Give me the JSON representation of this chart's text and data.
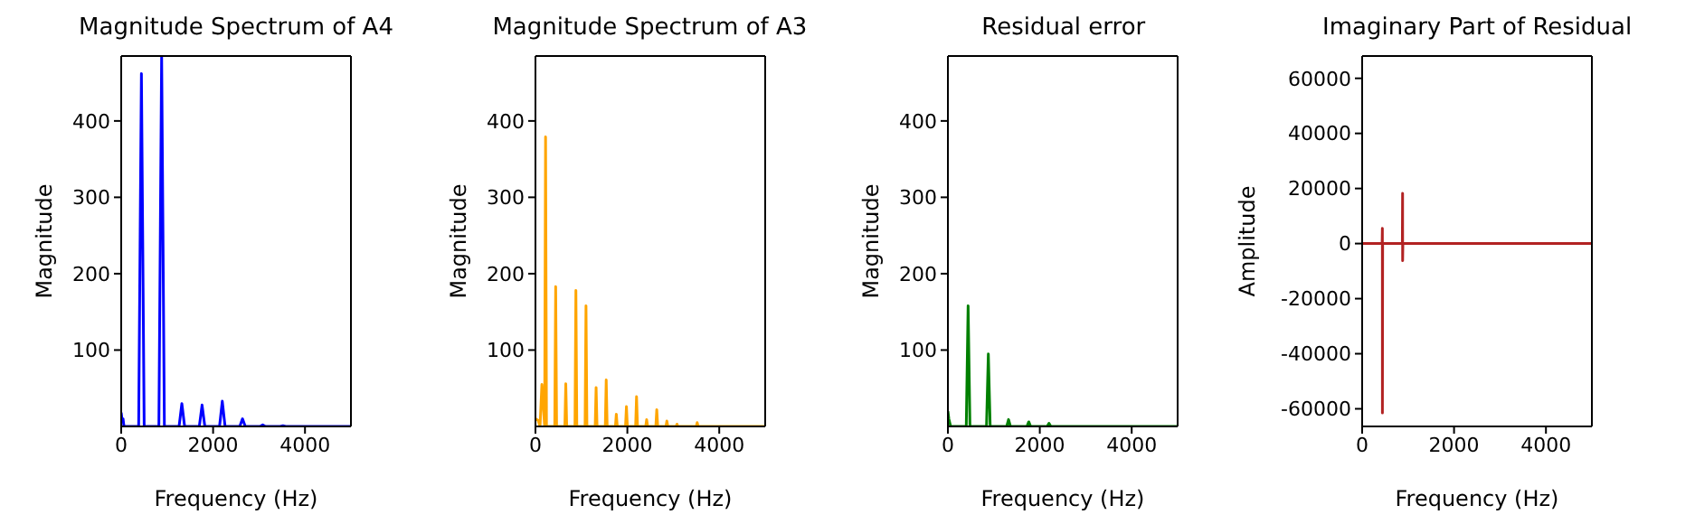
{
  "chart_data": [
    {
      "type": "line",
      "title": "Magnitude Spectrum of A4",
      "xlabel": "Frequency (Hz)",
      "ylabel": "Magnitude",
      "color": "#0000ff",
      "xlim": [
        0,
        5000
      ],
      "xticks": [
        0,
        2000,
        4000
      ],
      "ylim": [
        0,
        485
      ],
      "yticks": [
        100,
        200,
        300,
        400
      ],
      "x": [
        0,
        20,
        40,
        60,
        380,
        440,
        500,
        820,
        880,
        940,
        1260,
        1320,
        1380,
        1700,
        1760,
        1820,
        2140,
        2200,
        2260,
        2580,
        2640,
        2700,
        3020,
        3080,
        3140,
        3460,
        3520,
        3580,
        5000
      ],
      "values": [
        18,
        8,
        10,
        0,
        0,
        462,
        0,
        0,
        485,
        0,
        0,
        30,
        0,
        0,
        28,
        0,
        0,
        33,
        0,
        0,
        10,
        0,
        0,
        2,
        0,
        0,
        1,
        0,
        0
      ]
    },
    {
      "type": "line",
      "title": "Magnitude Spectrum of A3",
      "xlabel": "Frequency (Hz)",
      "ylabel": "Magnitude",
      "color": "#ffa500",
      "xlim": [
        0,
        5000
      ],
      "xticks": [
        0,
        2000,
        4000
      ],
      "ylim": [
        0,
        485
      ],
      "yticks": [
        100,
        200,
        300,
        400
      ],
      "x": [
        0,
        60,
        100,
        140,
        200,
        220,
        240,
        420,
        440,
        460,
        640,
        660,
        680,
        860,
        880,
        900,
        1080,
        1100,
        1120,
        1300,
        1320,
        1340,
        1520,
        1540,
        1560,
        1740,
        1760,
        1780,
        1960,
        1980,
        2000,
        2180,
        2200,
        2220,
        2400,
        2420,
        2440,
        2620,
        2640,
        2660,
        2840,
        2860,
        2880,
        3060,
        3080,
        3100,
        3500,
        3520,
        3540,
        5000
      ],
      "values": [
        10,
        8,
        0,
        55,
        0,
        379,
        0,
        0,
        183,
        0,
        0,
        56,
        0,
        0,
        178,
        0,
        0,
        158,
        0,
        0,
        51,
        0,
        0,
        61,
        0,
        0,
        16,
        0,
        0,
        26,
        0,
        0,
        39,
        0,
        0,
        9,
        0,
        0,
        22,
        0,
        0,
        7,
        0,
        0,
        3,
        0,
        0,
        5,
        0,
        0
      ]
    },
    {
      "type": "line",
      "title": "Residual error",
      "xlabel": "Frequency (Hz)",
      "ylabel": "Magnitude",
      "color": "#008000",
      "xlim": [
        0,
        5000
      ],
      "xticks": [
        0,
        2000,
        4000
      ],
      "ylim": [
        0,
        485
      ],
      "yticks": [
        100,
        200,
        300,
        400
      ],
      "x": [
        0,
        20,
        60,
        400,
        440,
        480,
        840,
        880,
        920,
        1280,
        1320,
        1360,
        1720,
        1760,
        1800,
        2160,
        2200,
        2240,
        5000
      ],
      "values": [
        20,
        10,
        0,
        0,
        158,
        0,
        0,
        95,
        0,
        0,
        9,
        0,
        0,
        6,
        0,
        0,
        4,
        0,
        0
      ]
    },
    {
      "type": "line",
      "title": "Imaginary Part of Residual",
      "xlabel": "Frequency (Hz)",
      "ylabel": "Amplitude",
      "color": "#b22222",
      "xlim": [
        0,
        5000
      ],
      "xticks": [
        0,
        2000,
        4000
      ],
      "ylim": [
        -66400,
        68100
      ],
      "yticks": [
        -60000,
        -40000,
        -20000,
        0,
        20000,
        40000,
        60000
      ],
      "x": [
        0,
        435,
        440,
        441,
        446,
        875,
        880,
        881,
        886,
        5000
      ],
      "values": [
        0,
        0,
        5500,
        -61500,
        0,
        0,
        18200,
        -6200,
        0,
        0
      ]
    }
  ]
}
